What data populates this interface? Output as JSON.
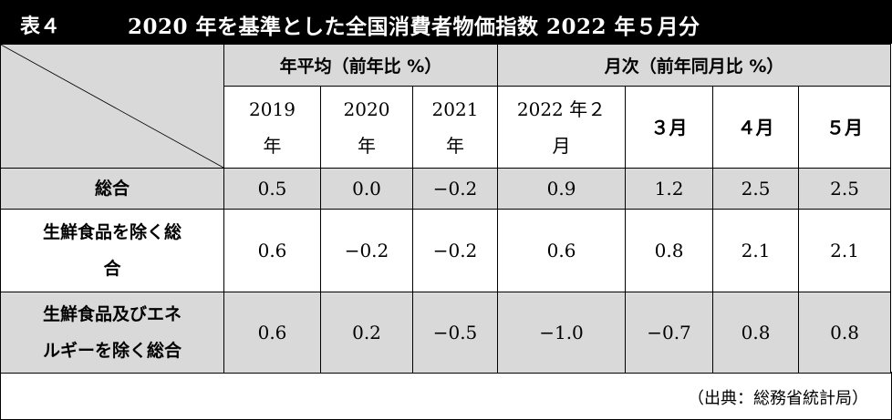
{
  "title": {
    "label": "表４",
    "text": "2020 年を基準とした全国消費者物価指数 2022 年５月分"
  },
  "headers": {
    "group_annual": "年平均（前年比 %）",
    "group_monthly": "月次（前年同月比 %）",
    "columns": [
      {
        "line1": "2019",
        "line2": "年"
      },
      {
        "line1": "2020",
        "line2": "年"
      },
      {
        "line1": "2021",
        "line2": "年"
      },
      {
        "line1": "2022 年２",
        "line2": "月"
      },
      {
        "line1": "３月",
        "line2": ""
      },
      {
        "line1": "４月",
        "line2": ""
      },
      {
        "line1": "５月",
        "line2": ""
      }
    ]
  },
  "rows": [
    {
      "label1": "総合",
      "label2": "",
      "values": [
        "0.5",
        "0.0",
        "−0.2",
        "0.9",
        "1.2",
        "2.5",
        "2.5"
      ]
    },
    {
      "label1": "生鮮食品を除く総",
      "label2": "合",
      "values": [
        "0.6",
        "−0.2",
        "−0.2",
        "0.6",
        "0.8",
        "2.1",
        "2.1"
      ]
    },
    {
      "label1": "生鮮食品及びエネ",
      "label2": "ルギーを除く総合",
      "values": [
        "0.6",
        "0.2",
        "−0.5",
        "−1.0",
        "−0.7",
        "0.8",
        "0.8"
      ]
    }
  ],
  "source": "（出典：総務省統計局）"
}
